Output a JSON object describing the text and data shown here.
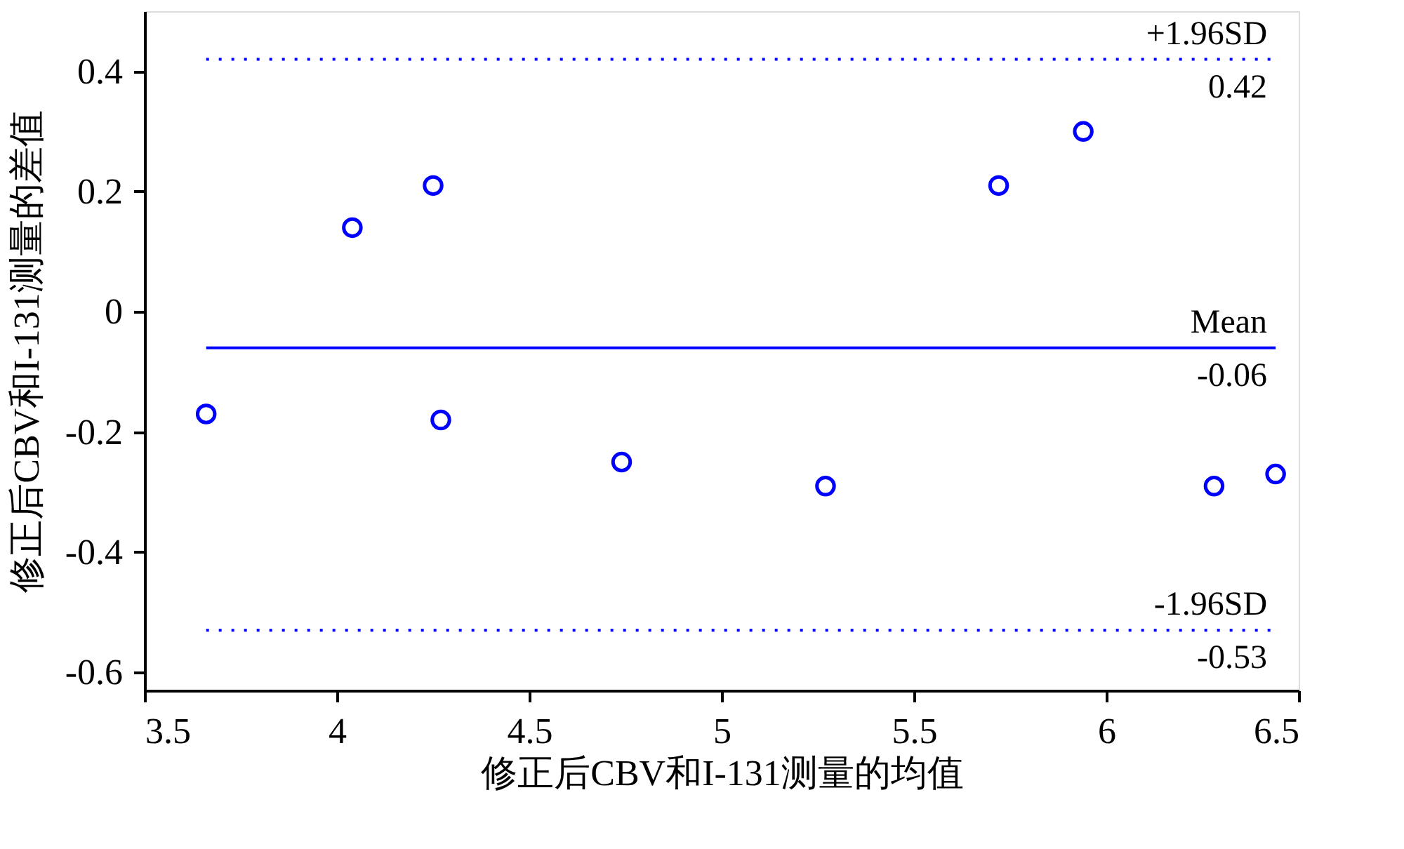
{
  "chart_data": {
    "type": "scatter",
    "xlabel": "修正后CBV和I-131测量的均值",
    "ylabel": "修正后CBV和I-131测量的差值",
    "x": [
      3.66,
      4.04,
      4.25,
      4.27,
      4.74,
      5.27,
      5.72,
      5.94,
      6.28,
      6.44
    ],
    "series": [
      {
        "color": "#0000ff",
        "values": [
          -0.17,
          0.14,
          0.21,
          -0.18,
          -0.25,
          -0.29,
          0.21,
          0.3,
          -0.29,
          -0.27
        ]
      }
    ],
    "marker": "circle",
    "grid": false,
    "xlim": [
      3.5,
      6.5
    ],
    "xticks": [
      3.5,
      4,
      4.5,
      5,
      5.5,
      6,
      6.5
    ],
    "ylim": [
      -0.63,
      0.5
    ],
    "yticks": [
      -0.6,
      -0.4,
      -0.2,
      0,
      0.2,
      0.4
    ],
    "ref_lines": [
      {
        "axis": "y",
        "value": 0.42,
        "label": "+1.96SD",
        "color": "#0000ff",
        "line_style": "dotted"
      },
      {
        "axis": "y",
        "value": -0.06,
        "label": "Mean",
        "color": "#0000ff",
        "line_style": "solid"
      },
      {
        "axis": "y",
        "value": -0.53,
        "label": "-1.96SD",
        "color": "#0000ff",
        "line_style": "dotted"
      }
    ],
    "annotations": [
      "0.42",
      "-0.06",
      "-0.53"
    ]
  }
}
